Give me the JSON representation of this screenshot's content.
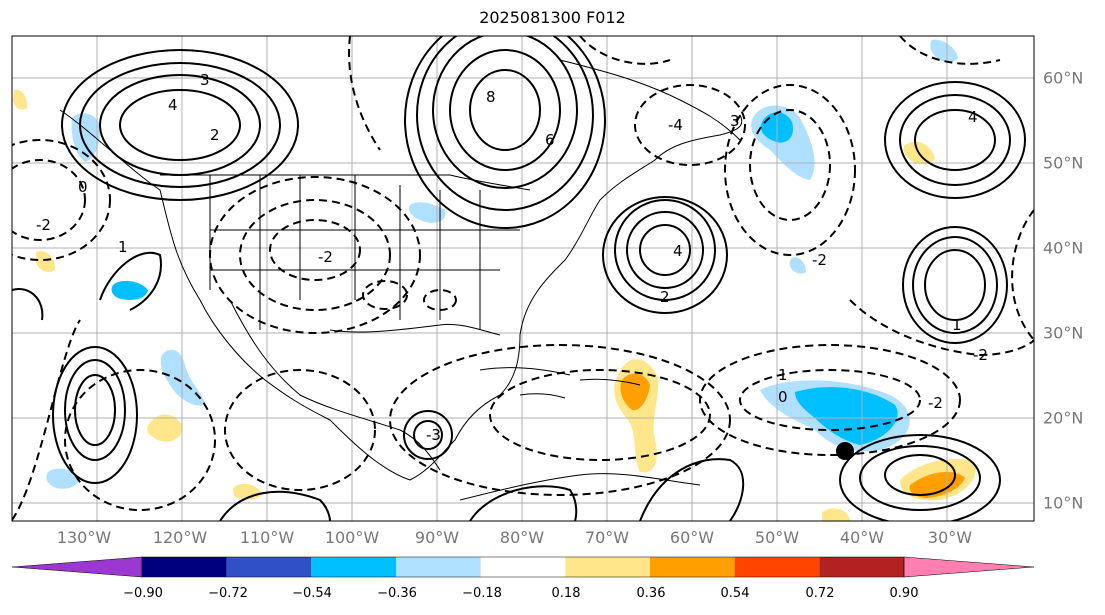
{
  "title": "2025081300 F012",
  "lon_labels": [
    "130°W",
    "120°W",
    "110°W",
    "100°W",
    "90°W",
    "80°W",
    "70°W",
    "60°W",
    "50°W",
    "40°W",
    "30°W"
  ],
  "lat_labels": [
    "60°N",
    "50°N",
    "40°N",
    "30°N",
    "20°N",
    "10°N"
  ],
  "contour_labels": [
    "4",
    "3",
    "2",
    "1",
    "0",
    "-2",
    "8",
    "6",
    "4",
    "3",
    "4",
    "-2",
    "-2",
    "1",
    "0",
    "-2",
    "-3",
    "-4",
    "2",
    "1",
    "-2"
  ],
  "colorbar": {
    "ticks": [
      "−0.90",
      "−0.72",
      "−0.54",
      "−0.36",
      "−0.18",
      "0.18",
      "0.36",
      "0.54",
      "0.72",
      "0.90"
    ],
    "colors": [
      "#9a38d0",
      "#00007f",
      "#3050c8",
      "#00bfff",
      "#b0e0ff",
      "#ffffff",
      "#ffe68a",
      "#ffa000",
      "#ff4500",
      "#b22222",
      "#ff80b0"
    ]
  },
  "features": {
    "marker": "black-dot"
  }
}
